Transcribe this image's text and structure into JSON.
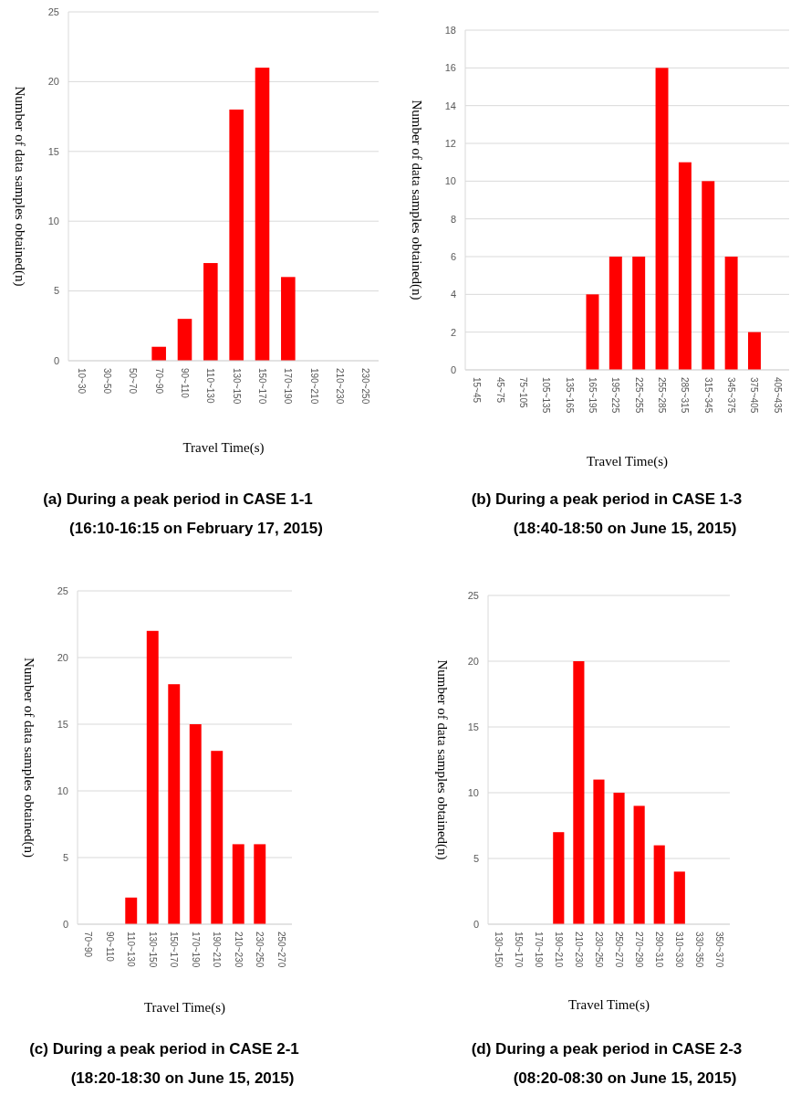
{
  "chart_data": [
    {
      "type": "bar",
      "title": "(a) During a peak period in CASE 1-1",
      "subtitle": "(16:10-16:15 on February 17, 2015)",
      "xlabel": "Travel Time(s)",
      "ylabel": "Number of data samples obtained(n)",
      "categories": [
        "10~30",
        "30~50",
        "50~70",
        "70~90",
        "90~110",
        "110~130",
        "130~150",
        "150~170",
        "170~190",
        "190~210",
        "210~230",
        "230~250"
      ],
      "values": [
        0,
        0,
        0,
        1,
        3,
        7,
        18,
        21,
        6,
        0,
        0,
        0
      ],
      "color": "#ff0000",
      "ylim": [
        0,
        25
      ],
      "yticks": [
        0,
        5,
        10,
        15,
        20,
        25
      ],
      "grid": "y"
    },
    {
      "type": "bar",
      "title": "(b) During a peak period in CASE 1-3",
      "subtitle": "(18:40-18:50 on June 15, 2015)",
      "xlabel": "Travel Time(s)",
      "ylabel": "Number of data samples obtained(n)",
      "categories": [
        "15~45",
        "45~75",
        "75~105",
        "105~135",
        "135~165",
        "165~195",
        "195~225",
        "225~255",
        "255~285",
        "285~315",
        "315~345",
        "345~375",
        "375~405",
        "405~435"
      ],
      "values": [
        0,
        0,
        0,
        0,
        0,
        4,
        6,
        6,
        16,
        11,
        10,
        6,
        2,
        0
      ],
      "color": "#ff0000",
      "ylim": [
        0,
        18
      ],
      "yticks": [
        0,
        2,
        4,
        6,
        8,
        10,
        12,
        14,
        16,
        18
      ],
      "grid": "y"
    },
    {
      "type": "bar",
      "title": "(c) During a peak period in CASE 2-1",
      "subtitle": "(18:20-18:30 on June 15, 2015)",
      "xlabel": "Travel Time(s)",
      "ylabel": "Number of data samples obtained(n)",
      "categories": [
        "70~90",
        "90~110",
        "110~130",
        "130~150",
        "150~170",
        "170~190",
        "190~210",
        "210~230",
        "230~250",
        "250~270"
      ],
      "values": [
        0,
        0,
        2,
        22,
        18,
        15,
        13,
        6,
        6,
        0
      ],
      "color": "#ff0000",
      "ylim": [
        0,
        25
      ],
      "yticks": [
        0,
        5,
        10,
        15,
        20,
        25
      ],
      "grid": "y"
    },
    {
      "type": "bar",
      "title": "(d) During a peak period in CASE 2-3",
      "subtitle": "(08:20-08:30 on June 15, 2015)",
      "xlabel": "Travel Time(s)",
      "ylabel": "Number of data samples obtained(n)",
      "categories": [
        "130~150",
        "150~170",
        "170~190",
        "190~210",
        "210~230",
        "230~250",
        "250~270",
        "270~290",
        "290~310",
        "310~330",
        "330~350",
        "350~370"
      ],
      "values": [
        0,
        0,
        0,
        7,
        20,
        11,
        10,
        9,
        6,
        4,
        0,
        0
      ],
      "color": "#ff0000",
      "ylim": [
        0,
        25
      ],
      "yticks": [
        0,
        5,
        10,
        15,
        20,
        25
      ],
      "grid": "y"
    }
  ]
}
